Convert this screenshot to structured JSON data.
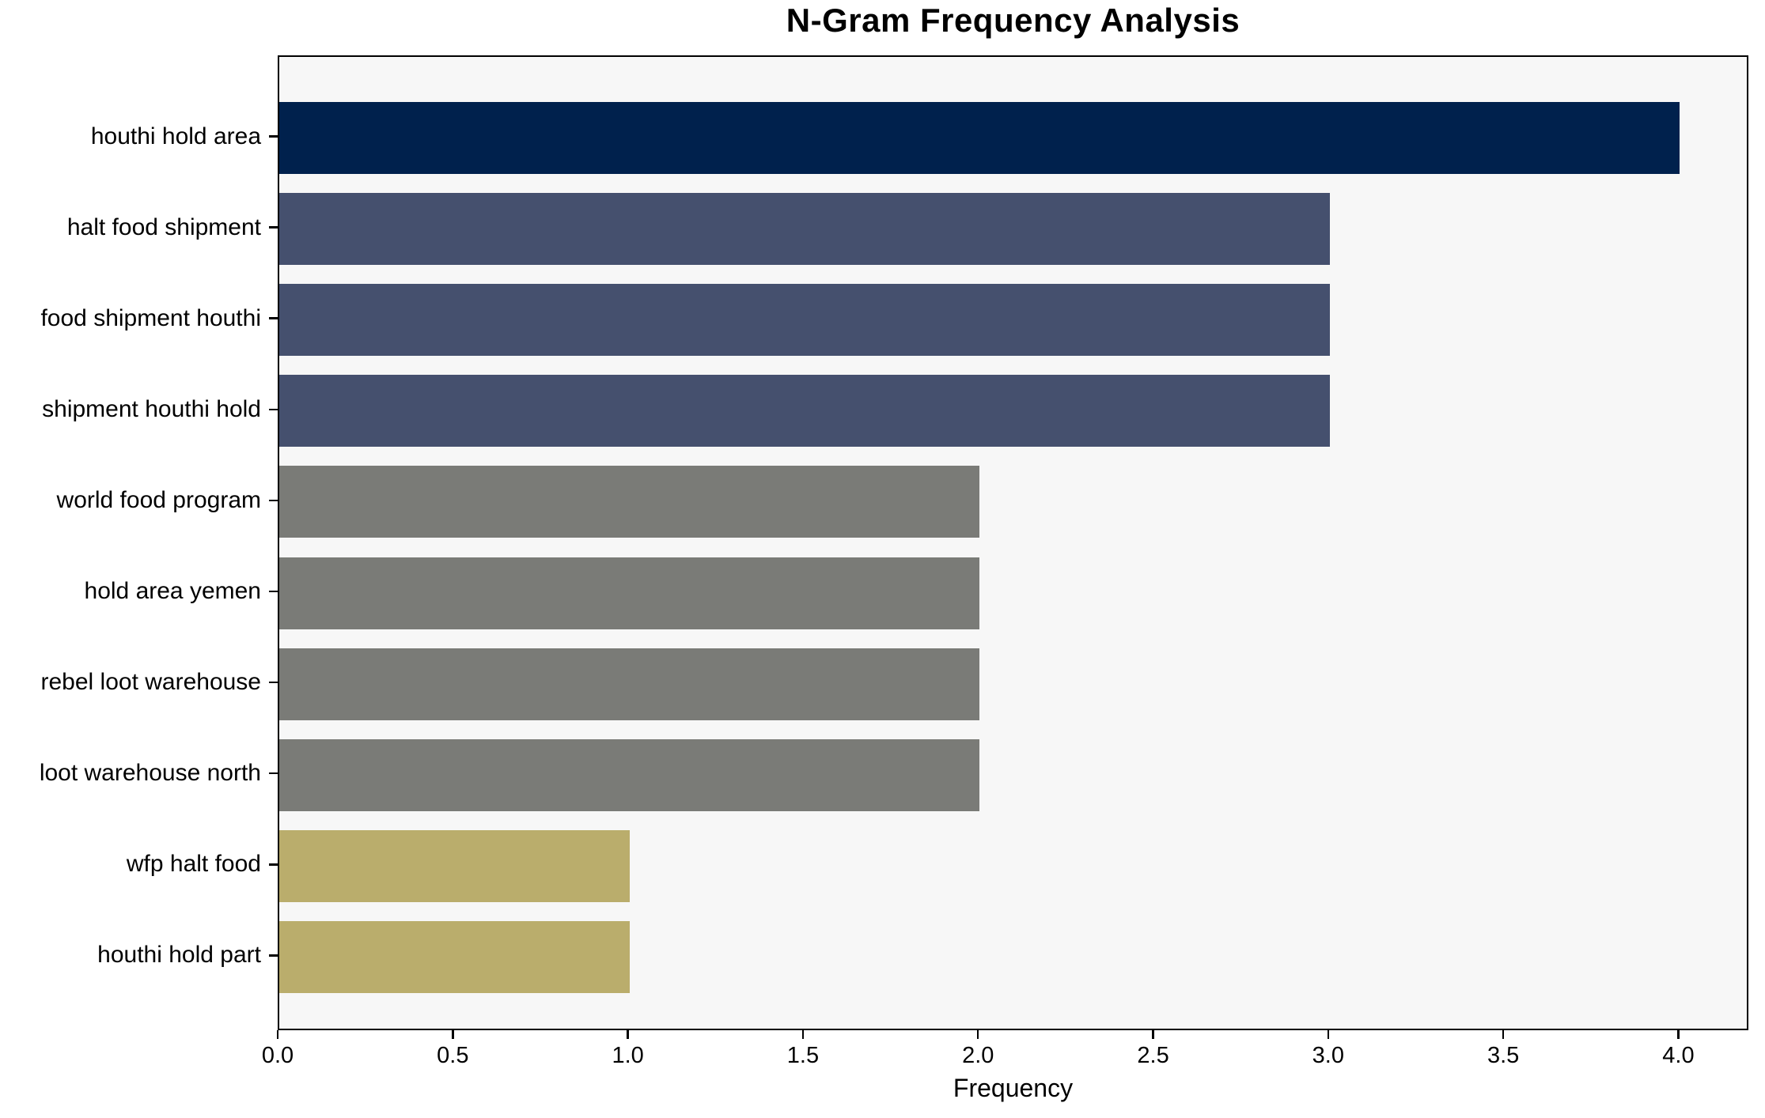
{
  "chart_data": {
    "type": "bar",
    "orientation": "horizontal",
    "title": "N-Gram Frequency Analysis",
    "xlabel": "Frequency",
    "ylabel": "",
    "categories": [
      "houthi hold area",
      "halt food shipment",
      "food shipment houthi",
      "shipment houthi hold",
      "world food program",
      "hold area yemen",
      "rebel loot warehouse",
      "loot warehouse north",
      "wfp halt food",
      "houthi hold part"
    ],
    "values": [
      4,
      3,
      3,
      3,
      2,
      2,
      2,
      2,
      1,
      1
    ],
    "bar_colors": [
      "#00214d",
      "#45506e",
      "#45506e",
      "#45506e",
      "#7a7b77",
      "#7a7b77",
      "#7a7b77",
      "#7a7b77",
      "#baad6c",
      "#baad6c"
    ],
    "xlim": [
      0,
      4.2
    ],
    "xticks": [
      0.0,
      0.5,
      1.0,
      1.5,
      2.0,
      2.5,
      3.0,
      3.5,
      4.0
    ],
    "xtick_labels": [
      "0.0",
      "0.5",
      "1.0",
      "1.5",
      "2.0",
      "2.5",
      "3.0",
      "3.5",
      "4.0"
    ],
    "grid": false,
    "legend": null,
    "plot_bg": "#f7f7f7",
    "figure_bg": "#ffffff",
    "spine_color": "#000000",
    "text_color": "#000000"
  }
}
